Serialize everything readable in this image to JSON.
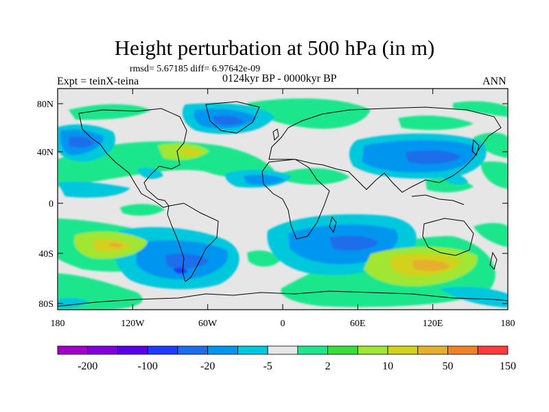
{
  "title": "Height perturbation at 500 hPa (in m)",
  "stats_text": "rmsd= 5.67185 diff= 6.97642e-09",
  "left_label": "Expt = teinX-teina",
  "center_label": "0124kyr BP - 0000kyr BP",
  "right_label": "ANN",
  "lat_ticks": [
    "80N",
    "40N",
    "0",
    "40S",
    "80S"
  ],
  "lon_ticks": [
    "180",
    "120W",
    "60W",
    "0",
    "60E",
    "120E",
    "180"
  ],
  "colorbar": {
    "colors": [
      "#a000c8",
      "#8200dc",
      "#5a00e6",
      "#1e3cff",
      "#1e6eeb",
      "#0096f0",
      "#00c8dc",
      "#e6e6e6",
      "#1ee68c",
      "#3cdc3c",
      "#a0e632",
      "#d2d21e",
      "#e6af2d",
      "#f08228",
      "#fa3c3c"
    ],
    "labels": [
      "-200",
      "-100",
      "-20",
      "-5",
      "2",
      "10",
      "50",
      "150"
    ]
  }
}
